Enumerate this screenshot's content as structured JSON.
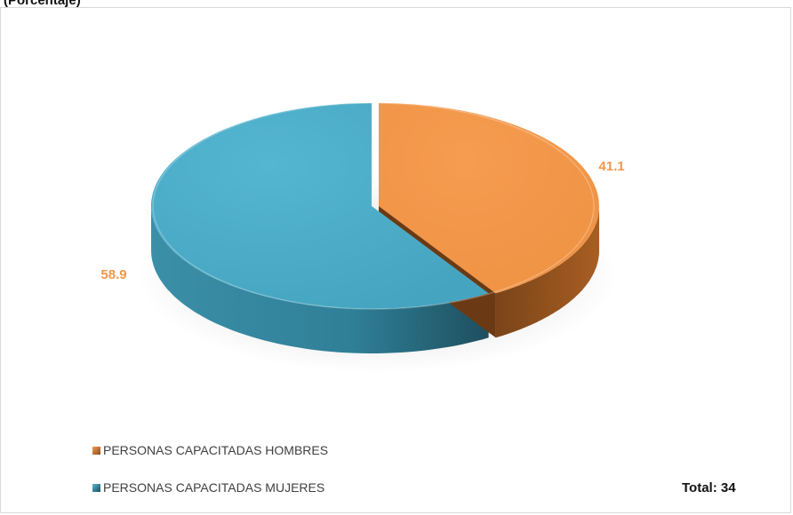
{
  "title": "(Porcentaje)",
  "chart_data": {
    "type": "pie",
    "style": "3d",
    "slices": [
      {
        "label": "PERSONAS CAPACITADAS HOMBRES",
        "value": 41.1,
        "color": "#F2974A",
        "label_text": "41.1"
      },
      {
        "label": "PERSONAS CAPACITADAS MUJERES",
        "value": 58.9,
        "color": "#4BABC6",
        "label_text": "58.9"
      }
    ],
    "data_label_color": "#F2974A",
    "legend": {
      "placement": "bottom-left",
      "entries": [
        "PERSONAS CAPACITADAS HOMBRES",
        "PERSONAS CAPACITADAS MUJERES"
      ]
    },
    "total_label": "Total: 34"
  }
}
